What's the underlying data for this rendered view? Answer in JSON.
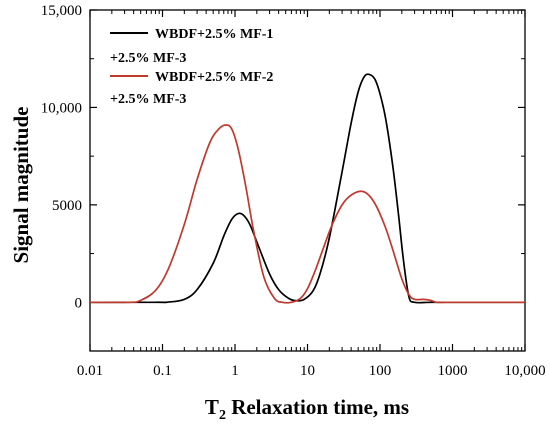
{
  "chart_data": {
    "type": "line",
    "title": "",
    "xlabel_main": "T",
    "xlabel_sub": "2",
    "xlabel_rest": " Relaxation time, ms",
    "ylabel": "Signal magnitude",
    "x_scale": "log",
    "xlim": [
      0.01,
      10000
    ],
    "ylim": [
      -2500,
      15000
    ],
    "x_ticks": [
      0.01,
      0.1,
      1,
      10,
      100,
      1000,
      10000
    ],
    "x_tick_labels": [
      "0.01",
      "0.1",
      "1",
      "10",
      "100",
      "1000",
      "10,000"
    ],
    "y_ticks": [
      0,
      5000,
      10000,
      15000
    ],
    "y_tick_labels": [
      "0",
      "5000",
      "10,000",
      "15,000"
    ],
    "grid": false,
    "legend_position": "top-left",
    "series": [
      {
        "name_line1": "WBDF+2.5% MF-1",
        "name_line2": "+2.5% MF-3",
        "color": "#000000",
        "x": [
          0.01,
          0.08,
          0.12,
          0.2,
          0.3,
          0.5,
          0.7,
          0.9,
          1.1,
          1.3,
          1.6,
          2,
          3,
          4,
          5.5,
          7,
          9,
          12,
          15,
          20,
          30,
          40,
          50,
          60,
          70,
          85,
          100,
          120,
          150,
          180,
          210,
          250,
          300,
          500,
          1000,
          10000
        ],
        "y": [
          0,
          0,
          10,
          150,
          650,
          2000,
          3400,
          4250,
          4550,
          4480,
          4000,
          3100,
          1450,
          650,
          200,
          80,
          150,
          600,
          1500,
          3300,
          6700,
          9200,
          10800,
          11550,
          11700,
          11450,
          10700,
          9400,
          7000,
          4500,
          2200,
          300,
          0,
          0,
          0,
          0
        ]
      },
      {
        "name_line1": "WBDF+2.5% MF-2",
        "name_line2": "+2.5% MF-3",
        "color": "#c0392b",
        "x": [
          0.01,
          0.035,
          0.05,
          0.08,
          0.12,
          0.2,
          0.3,
          0.45,
          0.6,
          0.75,
          0.9,
          1.1,
          1.4,
          1.8,
          2.5,
          3.5,
          4.5,
          6,
          8,
          10,
          13,
          17,
          22,
          30,
          40,
          55,
          70,
          90,
          120,
          150,
          200,
          250,
          300,
          400,
          500,
          600,
          800,
          1000,
          10000
        ],
        "y": [
          0,
          0,
          100,
          600,
          1700,
          4000,
          6300,
          8200,
          8900,
          9100,
          8900,
          7900,
          6000,
          3700,
          1300,
          200,
          0,
          0,
          200,
          700,
          1700,
          2900,
          4000,
          5000,
          5500,
          5700,
          5500,
          4900,
          3800,
          2700,
          1200,
          400,
          150,
          150,
          100,
          0,
          0,
          0,
          0
        ]
      }
    ]
  }
}
